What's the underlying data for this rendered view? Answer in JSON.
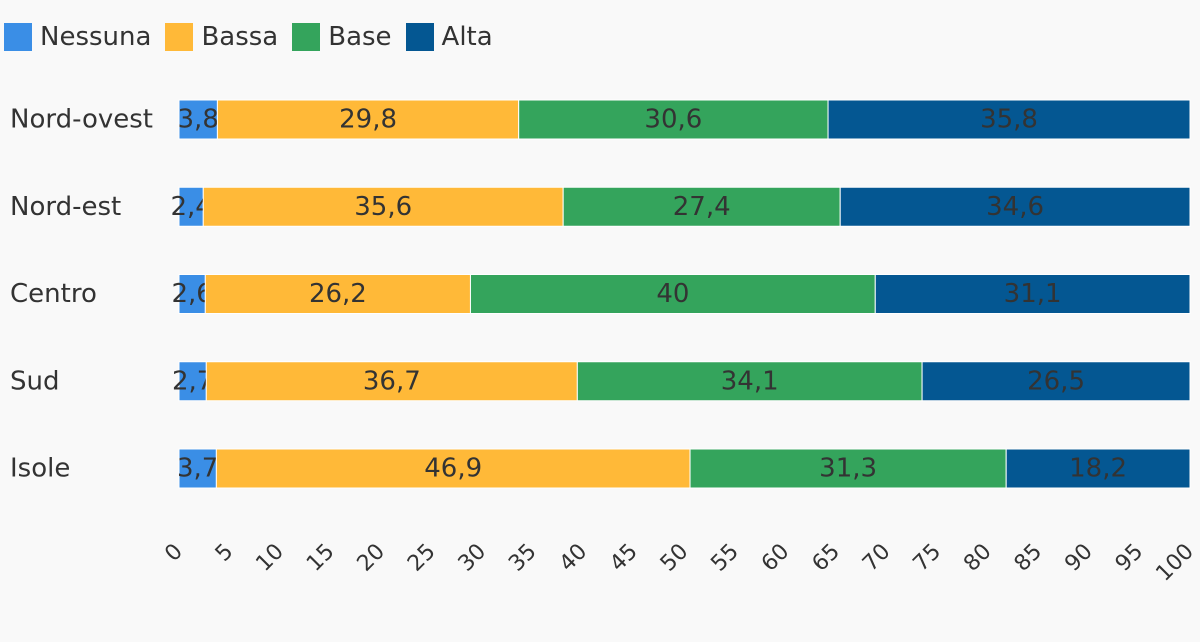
{
  "colors": {
    "Nessuna": "#3a8ee6",
    "Bassa": "#ffb938",
    "Base": "#34a45c",
    "Alta": "#045792",
    "background": "#f9f9f9"
  },
  "chart_data": {
    "type": "bar",
    "orientation": "horizontal",
    "stacked": true,
    "categories": [
      "Nord-ovest",
      "Nord-est",
      "Centro",
      "Sud",
      "Isole"
    ],
    "series": [
      {
        "name": "Nessuna",
        "values": [
          3.8,
          2.4,
          2.6,
          2.7,
          3.7
        ],
        "labels": [
          "3,8",
          "2,4",
          "2,6",
          "2,7",
          "3,7"
        ]
      },
      {
        "name": "Bassa",
        "values": [
          29.8,
          35.6,
          26.2,
          36.7,
          46.9
        ],
        "labels": [
          "29,8",
          "35,6",
          "26,2",
          "36,7",
          "46,9"
        ]
      },
      {
        "name": "Base",
        "values": [
          30.6,
          27.4,
          40,
          34.1,
          31.3
        ],
        "labels": [
          "30,6",
          "27,4",
          "40",
          "34,1",
          "31,3"
        ]
      },
      {
        "name": "Alta",
        "values": [
          35.8,
          34.6,
          31.1,
          26.5,
          18.2
        ],
        "labels": [
          "35,8",
          "34,6",
          "31,1",
          "26,5",
          "18,2"
        ]
      }
    ],
    "xlim": [
      0,
      100
    ],
    "xticks": [
      "0",
      "5",
      "10",
      "15",
      "20",
      "25",
      "30",
      "35",
      "40",
      "45",
      "50",
      "55",
      "60",
      "65",
      "70",
      "75",
      "80",
      "85",
      "90",
      "95",
      "100"
    ],
    "legend_position": "top-left",
    "grid": false
  }
}
